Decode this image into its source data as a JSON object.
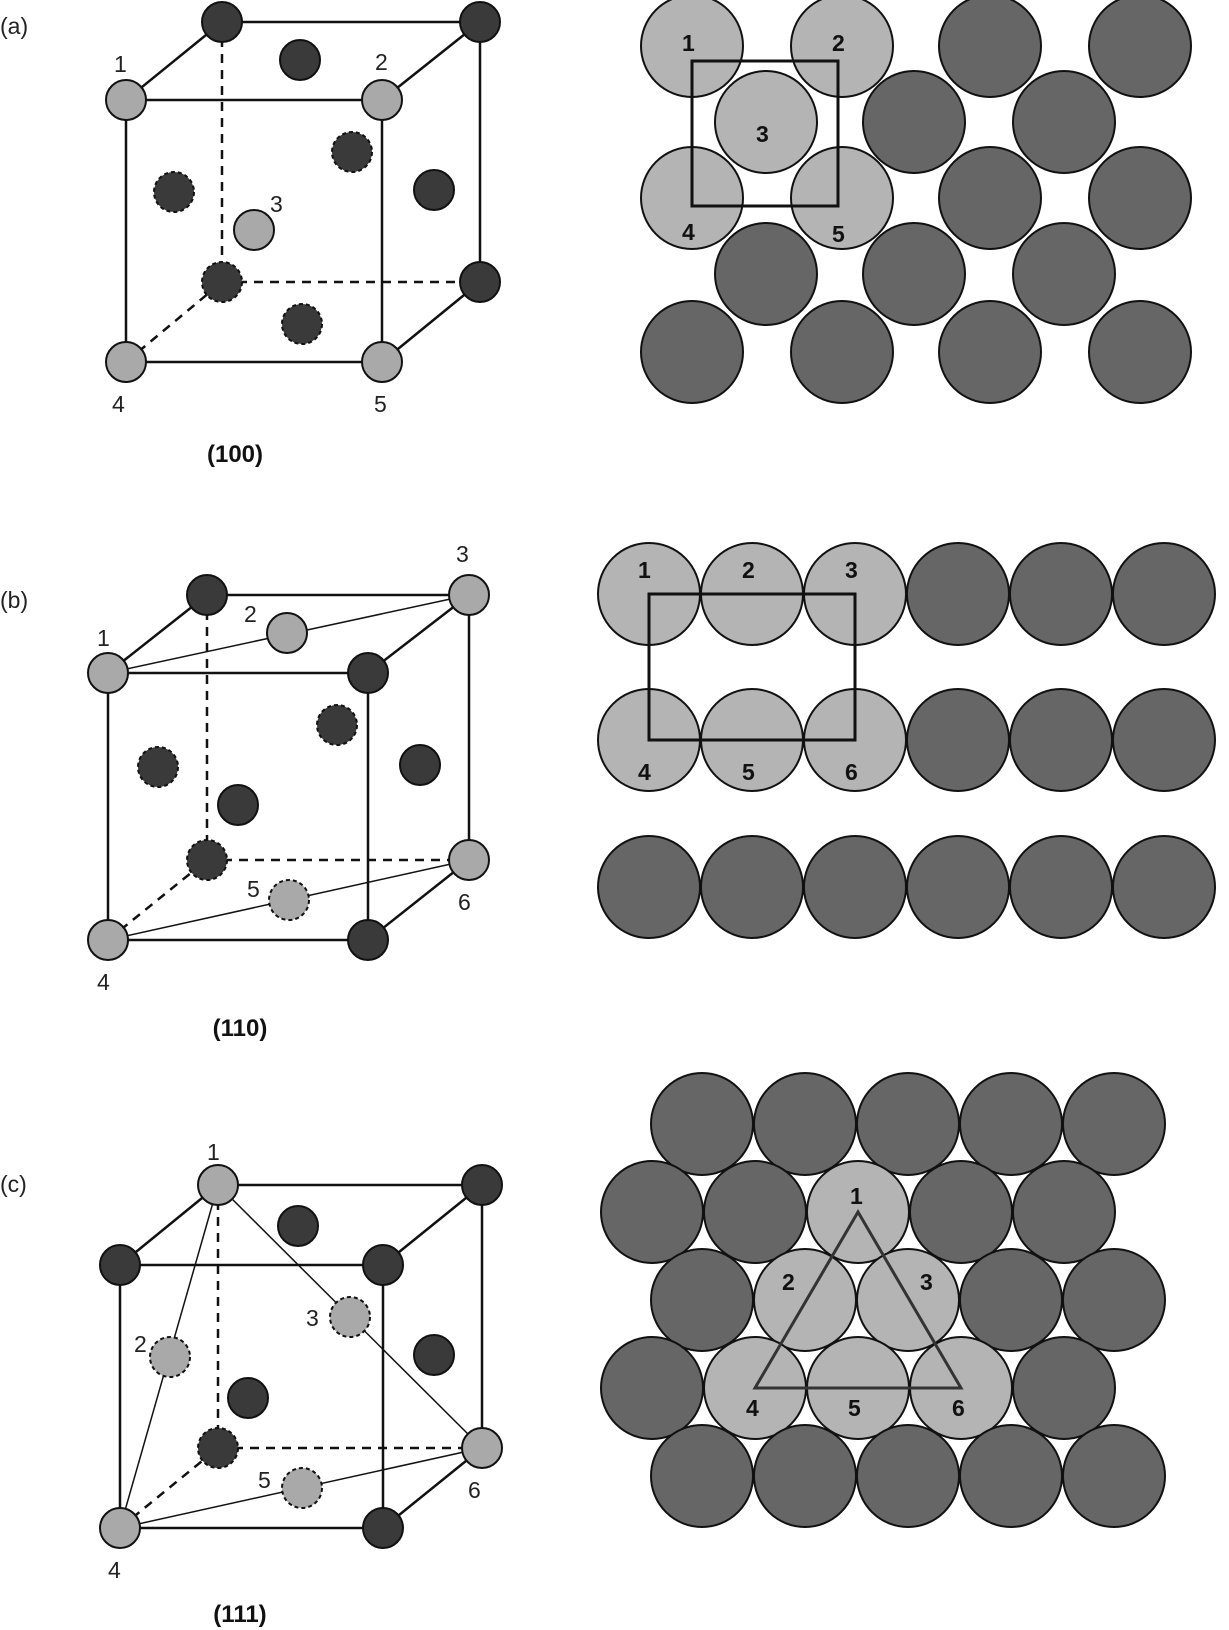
{
  "colors": {
    "light_atom": "#a9a9a9",
    "dark_atom": "#3a3a3a",
    "packing_dark": "#666666",
    "packing_light": "#b4b4b4",
    "line": "#111111"
  },
  "panels": [
    {
      "id": "a",
      "tag": "(a)",
      "plane": "(100)",
      "cube_labels": [
        "1",
        "2",
        "3",
        "4",
        "5"
      ],
      "layer_labels": [
        "1",
        "2",
        "3",
        "4",
        "5"
      ]
    },
    {
      "id": "b",
      "tag": "(b)",
      "plane": "(110)",
      "cube_labels": [
        "1",
        "2",
        "3",
        "4",
        "5",
        "6"
      ],
      "layer_labels": [
        "1",
        "2",
        "3",
        "4",
        "5",
        "6"
      ]
    },
    {
      "id": "c",
      "tag": "(c)",
      "plane": "(111)",
      "cube_labels": [
        "1",
        "2",
        "3",
        "4",
        "5",
        "6"
      ],
      "layer_labels": [
        "1",
        "2",
        "3",
        "4",
        "5",
        "6"
      ]
    }
  ]
}
